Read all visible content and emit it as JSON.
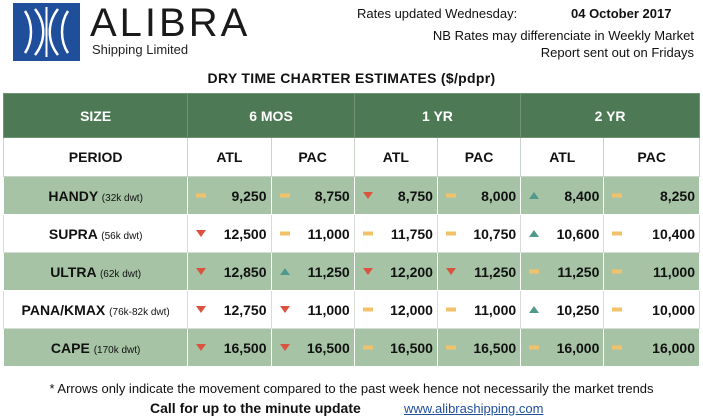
{
  "header": {
    "brand": "ALIBRA",
    "subtitle": "Shipping Limited",
    "rates_label": "Rates updated Wednesday:",
    "rates_date": "04 October 2017",
    "nb_line1": "NB Rates may differenciate in Weekly Market",
    "nb_line2": "Report sent out on Fridays"
  },
  "table": {
    "title": "DRY TIME CHARTER ESTIMATES ($/pdpr)",
    "size_header": "SIZE",
    "period_header": "PERIOD",
    "periods": [
      "6 MOS",
      "1 YR",
      "2 YR"
    ],
    "columns": [
      "ATL",
      "PAC",
      "ATL",
      "PAC",
      "ATL",
      "PAC"
    ],
    "rows": [
      {
        "name": "HANDY",
        "dwt": "(32k dwt)",
        "cells": [
          {
            "value": "9,250",
            "trend": "flat"
          },
          {
            "value": "8,750",
            "trend": "flat"
          },
          {
            "value": "8,750",
            "trend": "down"
          },
          {
            "value": "8,000",
            "trend": "flat"
          },
          {
            "value": "8,400",
            "trend": "up"
          },
          {
            "value": "8,250",
            "trend": "flat"
          }
        ]
      },
      {
        "name": "SUPRA",
        "dwt": "(56k dwt)",
        "cells": [
          {
            "value": "12,500",
            "trend": "down"
          },
          {
            "value": "11,000",
            "trend": "flat"
          },
          {
            "value": "11,750",
            "trend": "flat"
          },
          {
            "value": "10,750",
            "trend": "flat"
          },
          {
            "value": "10,600",
            "trend": "up"
          },
          {
            "value": "10,400",
            "trend": "flat"
          }
        ]
      },
      {
        "name": "ULTRA",
        "dwt": "(62k dwt)",
        "cells": [
          {
            "value": "12,850",
            "trend": "down"
          },
          {
            "value": "11,250",
            "trend": "up"
          },
          {
            "value": "12,200",
            "trend": "down"
          },
          {
            "value": "11,250",
            "trend": "down"
          },
          {
            "value": "11,250",
            "trend": "flat"
          },
          {
            "value": "11,000",
            "trend": "flat"
          }
        ]
      },
      {
        "name": "PANA/KMAX",
        "dwt": "(76k-82k dwt)",
        "cells": [
          {
            "value": "12,750",
            "trend": "down"
          },
          {
            "value": "11,000",
            "trend": "down"
          },
          {
            "value": "12,000",
            "trend": "flat"
          },
          {
            "value": "11,000",
            "trend": "flat"
          },
          {
            "value": "10,250",
            "trend": "up"
          },
          {
            "value": "10,000",
            "trend": "flat"
          }
        ]
      },
      {
        "name": "CAPE",
        "dwt": "(170k dwt)",
        "cells": [
          {
            "value": "16,500",
            "trend": "down"
          },
          {
            "value": "16,500",
            "trend": "down"
          },
          {
            "value": "16,500",
            "trend": "flat"
          },
          {
            "value": "16,500",
            "trend": "flat"
          },
          {
            "value": "16,000",
            "trend": "flat"
          },
          {
            "value": "16,000",
            "trend": "flat"
          }
        ]
      }
    ]
  },
  "footer": {
    "note": "* Arrows only indicate the movement compared to the past week hence not necessarily the market trends",
    "cta": "Call for up to the minute update",
    "website": "www.alibrashipping.com"
  },
  "colors": {
    "header_green": "#4d7a54",
    "row_green": "#a6c4a5",
    "down": "#d9533f",
    "up": "#4f9a8a",
    "flat": "#f2c26b",
    "brand_blue": "#1f4e9b"
  },
  "icons": {
    "down": "triangle-down-icon",
    "up": "triangle-up-icon",
    "flat": "dash-icon"
  }
}
